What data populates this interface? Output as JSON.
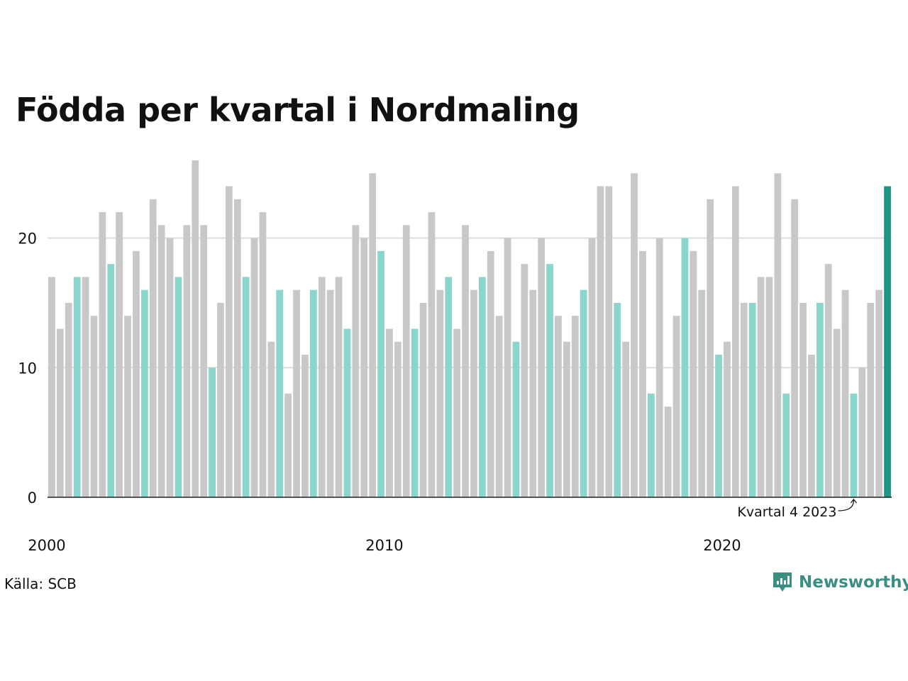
{
  "chart_data": {
    "type": "bar",
    "title": "Födda per kvartal i Nordmaling",
    "xlabel": "",
    "ylabel": "",
    "ylim": [
      0,
      26
    ],
    "yticks": [
      0,
      10,
      20
    ],
    "xticks": [
      "2000",
      "2010",
      "2020"
    ],
    "grid": "horizontal",
    "start_year": 2000,
    "series": [
      {
        "values": [
          17,
          13,
          15,
          17,
          17,
          14,
          22,
          18,
          22,
          14,
          19,
          16,
          23,
          21,
          20,
          17,
          21,
          26,
          21,
          10,
          15,
          24,
          23,
          17,
          20,
          22,
          12,
          16,
          8,
          16,
          11,
          16,
          17,
          16,
          17,
          13,
          21,
          20,
          25,
          19,
          13,
          12,
          21,
          13,
          15,
          22,
          16,
          17,
          13,
          21,
          16,
          17,
          19,
          14,
          20,
          12,
          18,
          16,
          20,
          18,
          14,
          12,
          14,
          16,
          20,
          24,
          24,
          15,
          12,
          25,
          19,
          8,
          20,
          7,
          14,
          20,
          19,
          16,
          23,
          11,
          12,
          24,
          15,
          15,
          17,
          17,
          25,
          8,
          23,
          15,
          11,
          15,
          18,
          13,
          16,
          8,
          10,
          15,
          16,
          24
        ]
      }
    ],
    "annotation": "Kvartal 4 2023",
    "colors": {
      "bar": "#c8c8c8",
      "bar_q4": "#8ad5cc",
      "bar_latest": "#1d9585",
      "grid": "#dddddd",
      "axis": "#222222"
    }
  },
  "footer": {
    "source": "Källa: SCB",
    "brand": "Newsworthy",
    "brand_color": "#3a8f82",
    "brand_icon": "newsworthy-logo-icon"
  }
}
